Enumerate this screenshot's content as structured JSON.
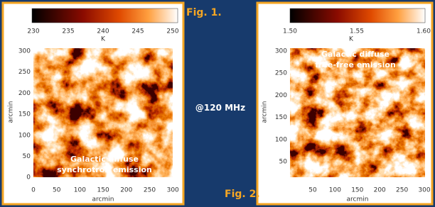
{
  "labels": {
    "fig1": "Fig. 1.",
    "fig2": "Fig. 2.",
    "frequency": "@120 MHz"
  },
  "panels": [
    {
      "colorbar_ticks": [
        "230",
        "235",
        "240",
        "245",
        "250"
      ],
      "colorbar_unit": "K",
      "y_ticks": [
        "300",
        "250",
        "200",
        "150",
        "100",
        "50",
        "0"
      ],
      "x_ticks": [
        "0",
        "50",
        "100",
        "150",
        "200",
        "250",
        "300"
      ],
      "x_label": "arcmin",
      "y_label": "arcmin",
      "annotation": [
        "Galactic diffuse",
        "synchrotron emission"
      ]
    },
    {
      "colorbar_ticks": [
        "1.50",
        "1.55",
        "1.60"
      ],
      "colorbar_unit": "K",
      "y_ticks": [
        "300",
        "250",
        "200",
        "150",
        "100",
        "50"
      ],
      "x_ticks": [
        "50",
        "100",
        "150",
        "200",
        "250",
        "300"
      ],
      "x_label": "arcmin",
      "y_label": "arcmin",
      "annotation": [
        "Galactic diffuse",
        "free-free emission"
      ]
    }
  ]
}
